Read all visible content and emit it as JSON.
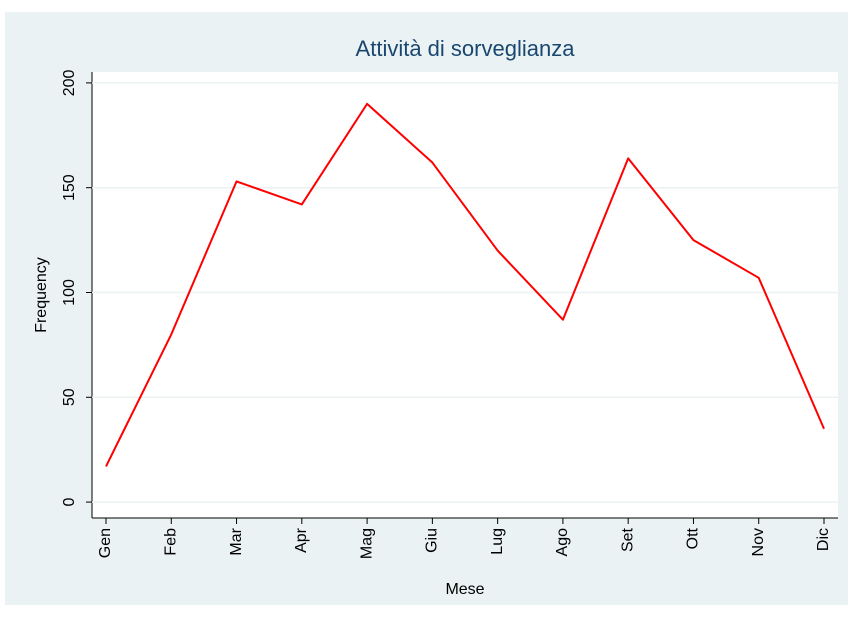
{
  "chart_data": {
    "type": "line",
    "title": "Attività di sorveglianza",
    "x_label": "Mese",
    "y_label": "Frequency",
    "categories": [
      "Gen",
      "Feb",
      "Mar",
      "Apr",
      "Mag",
      "Giu",
      "Lug",
      "Ago",
      "Set",
      "Ott",
      "Nov",
      "Dic"
    ],
    "values": [
      17,
      80,
      153,
      142,
      190,
      162,
      120,
      87,
      164,
      125,
      107,
      35
    ],
    "color": "#ff0000",
    "ylim": [
      -7.6,
      205.2
    ],
    "yticks": [
      0,
      50,
      100,
      150,
      200
    ],
    "grid": true
  }
}
